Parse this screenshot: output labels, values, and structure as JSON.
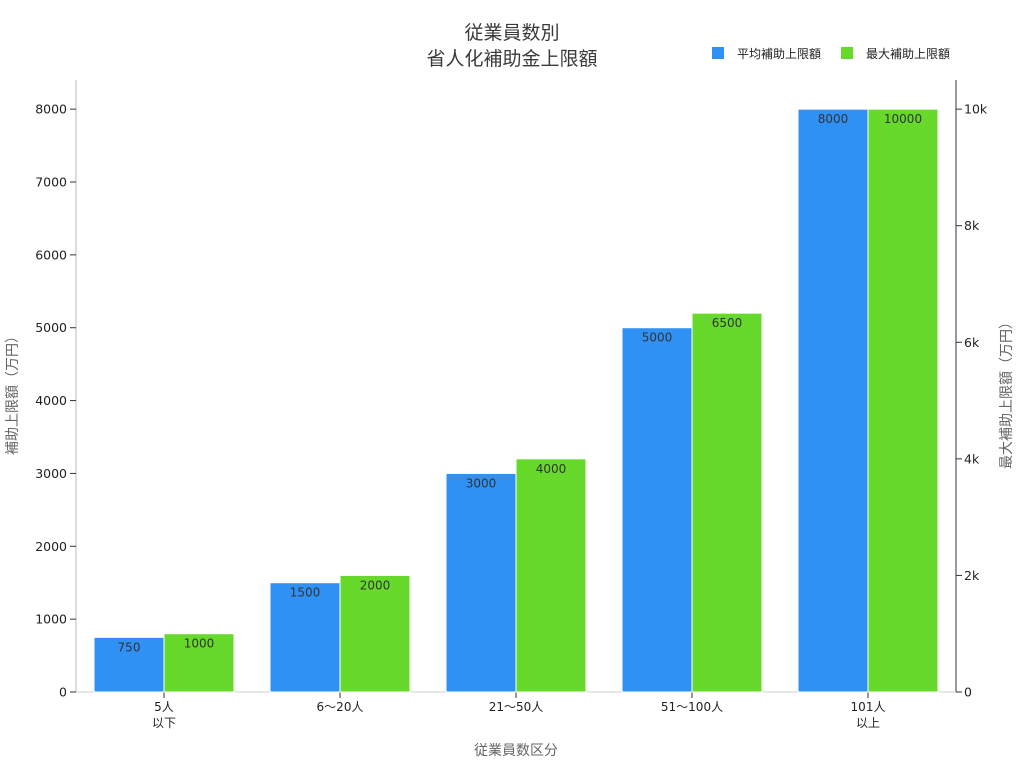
{
  "chart_data": {
    "type": "bar",
    "title": [
      "従業員数別",
      "省人化補助金上限額"
    ],
    "xlabel": "従業員数区分",
    "ylabel_left": "補助上限額（万円）",
    "ylabel_right": "最大補助上限額（万円）",
    "categories": [
      [
        "5人",
        "以下"
      ],
      [
        "6〜20人"
      ],
      [
        "21〜50人"
      ],
      [
        "51〜100人"
      ],
      [
        "101人",
        "以上"
      ]
    ],
    "legend_position": "top-right",
    "grid": false,
    "series": [
      {
        "name": "平均補助上限額",
        "axis": "left",
        "color": "#3091f5",
        "values": [
          750,
          1500,
          3000,
          5000,
          8000
        ],
        "labels": [
          "750",
          "1500",
          "3000",
          "5000",
          "8000"
        ]
      },
      {
        "name": "最大補助上限額",
        "axis": "right",
        "color": "#66d92b",
        "values": [
          1000,
          2000,
          4000,
          6500,
          10000
        ],
        "labels": [
          "1000",
          "2000",
          "4000",
          "6500",
          "10000"
        ]
      }
    ],
    "y_left": {
      "range": [
        0,
        8400
      ],
      "ticks": [
        0,
        1000,
        2000,
        3000,
        4000,
        5000,
        6000,
        7000,
        8000
      ],
      "tick_labels": [
        "0",
        "1000",
        "2000",
        "3000",
        "4000",
        "5000",
        "6000",
        "7000",
        "8000"
      ]
    },
    "y_right": {
      "range": [
        0,
        10500
      ],
      "ticks": [
        0,
        2000,
        4000,
        6000,
        8000,
        10000
      ],
      "tick_labels": [
        "0",
        "2k",
        "4k",
        "6k",
        "8k",
        "10k"
      ]
    }
  }
}
